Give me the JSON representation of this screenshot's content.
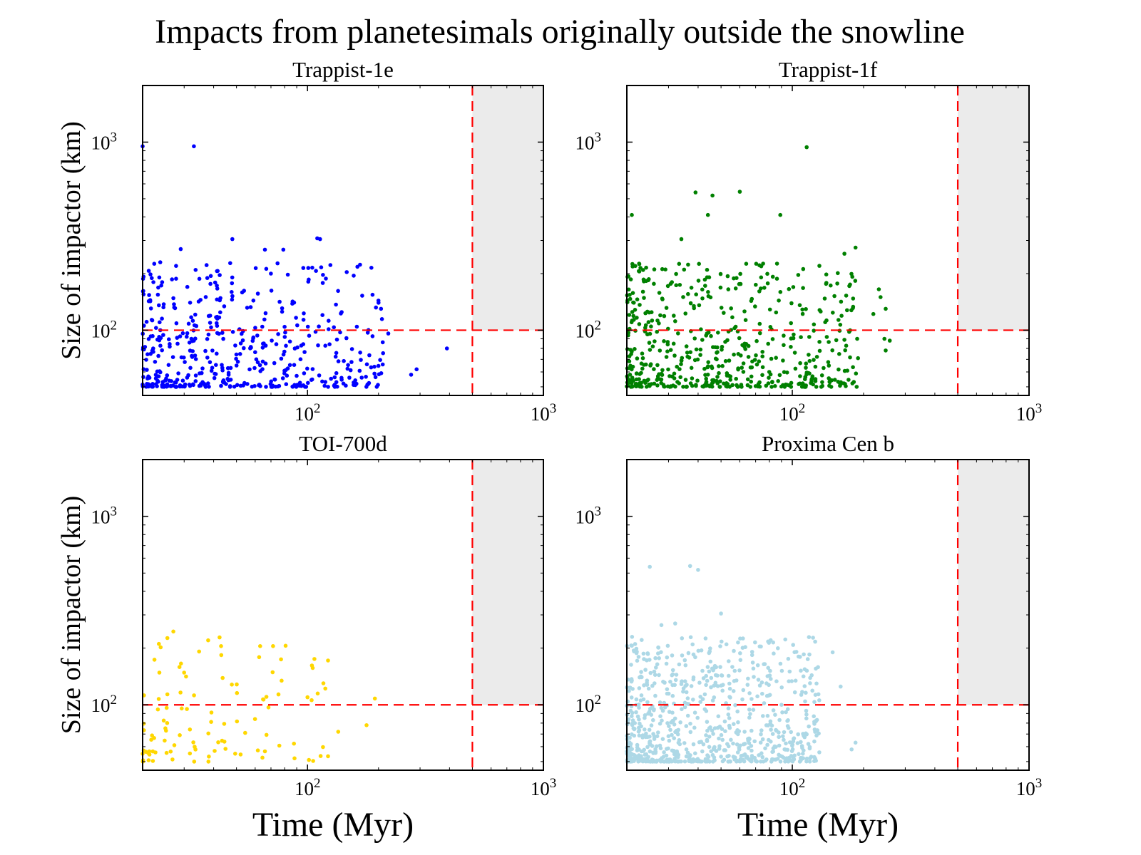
{
  "chart_data": {
    "type": "scatter",
    "title": "Impacts from planetesimals originally outside the snowline",
    "xlabel": "Time (Myr)",
    "ylabel": "Size of impactor (km)",
    "xscale": "log",
    "yscale": "log",
    "xlim": [
      20,
      1000
    ],
    "ylim": [
      45,
      2000
    ],
    "xticks": [
      {
        "base": "10",
        "exp": "2",
        "value": 100
      },
      {
        "base": "10",
        "exp": "3",
        "value": 1000
      }
    ],
    "yticks": [
      {
        "base": "10",
        "exp": "2",
        "value": 100
      },
      {
        "base": "10",
        "exp": "3",
        "value": 1000
      }
    ],
    "reference_lines": {
      "time_myr": 500,
      "size_km": 100,
      "color": "#ff0000",
      "style": "dashed"
    },
    "shaded_region": {
      "x_from": 500,
      "x_to": 1000,
      "y_from": 100,
      "y_to": 2000,
      "color": "#ebebeb"
    },
    "panels": [
      {
        "name": "Trappist-1e",
        "color": "#0000ff",
        "n_points": 480,
        "seed": 11,
        "t_max": 210,
        "highlights": [
          {
            "t": 20,
            "size": 950
          },
          {
            "t": 33,
            "size": 950
          },
          {
            "t": 48,
            "size": 305
          },
          {
            "t": 110,
            "size": 308
          },
          {
            "t": 113,
            "size": 305
          },
          {
            "t": 29,
            "size": 270
          },
          {
            "t": 66,
            "size": 268
          },
          {
            "t": 79,
            "size": 268
          },
          {
            "t": 125,
            "size": 222
          },
          {
            "t": 157,
            "size": 195
          },
          {
            "t": 200,
            "size": 140
          },
          {
            "t": 195,
            "size": 132
          },
          {
            "t": 205,
            "size": 130
          },
          {
            "t": 180,
            "size": 97
          },
          {
            "t": 220,
            "size": 96
          },
          {
            "t": 290,
            "size": 62
          },
          {
            "t": 275,
            "size": 58
          },
          {
            "t": 390,
            "size": 80
          }
        ]
      },
      {
        "name": "Trappist-1f",
        "color": "#008000",
        "n_points": 560,
        "seed": 23,
        "t_max": 190,
        "highlights": [
          {
            "t": 115,
            "size": 940
          },
          {
            "t": 39,
            "size": 540
          },
          {
            "t": 46,
            "size": 520
          },
          {
            "t": 60,
            "size": 545
          },
          {
            "t": 21,
            "size": 410
          },
          {
            "t": 44,
            "size": 410
          },
          {
            "t": 89,
            "size": 410
          },
          {
            "t": 34,
            "size": 305
          },
          {
            "t": 185,
            "size": 275
          },
          {
            "t": 166,
            "size": 255
          },
          {
            "t": 232,
            "size": 165
          },
          {
            "t": 236,
            "size": 150
          },
          {
            "t": 248,
            "size": 130
          },
          {
            "t": 220,
            "size": 122
          },
          {
            "t": 245,
            "size": 90
          },
          {
            "t": 258,
            "size": 88
          },
          {
            "t": 248,
            "size": 78
          },
          {
            "t": 188,
            "size": 90
          }
        ]
      },
      {
        "name": "TOI-700d",
        "color": "#ffd700",
        "n_points": 105,
        "seed": 37,
        "t_max": 125,
        "highlights": [
          {
            "t": 27,
            "size": 245
          },
          {
            "t": 43,
            "size": 205
          },
          {
            "t": 63,
            "size": 205
          },
          {
            "t": 107,
            "size": 175
          },
          {
            "t": 119,
            "size": 122
          },
          {
            "t": 135,
            "size": 72
          },
          {
            "t": 178,
            "size": 78
          },
          {
            "t": 193,
            "size": 108
          },
          {
            "t": 20,
            "size": 55
          }
        ]
      },
      {
        "name": "Proxima Cen b",
        "color": "#add8e6",
        "n_points": 780,
        "seed": 53,
        "t_max": 130,
        "highlights": [
          {
            "t": 25,
            "size": 540
          },
          {
            "t": 37,
            "size": 545
          },
          {
            "t": 40,
            "size": 520
          },
          {
            "t": 50,
            "size": 305
          },
          {
            "t": 32,
            "size": 270
          },
          {
            "t": 28,
            "size": 265
          },
          {
            "t": 148,
            "size": 190
          },
          {
            "t": 160,
            "size": 125
          },
          {
            "t": 185,
            "size": 63
          },
          {
            "t": 178,
            "size": 58
          },
          {
            "t": 130,
            "size": 56
          }
        ]
      }
    ]
  }
}
